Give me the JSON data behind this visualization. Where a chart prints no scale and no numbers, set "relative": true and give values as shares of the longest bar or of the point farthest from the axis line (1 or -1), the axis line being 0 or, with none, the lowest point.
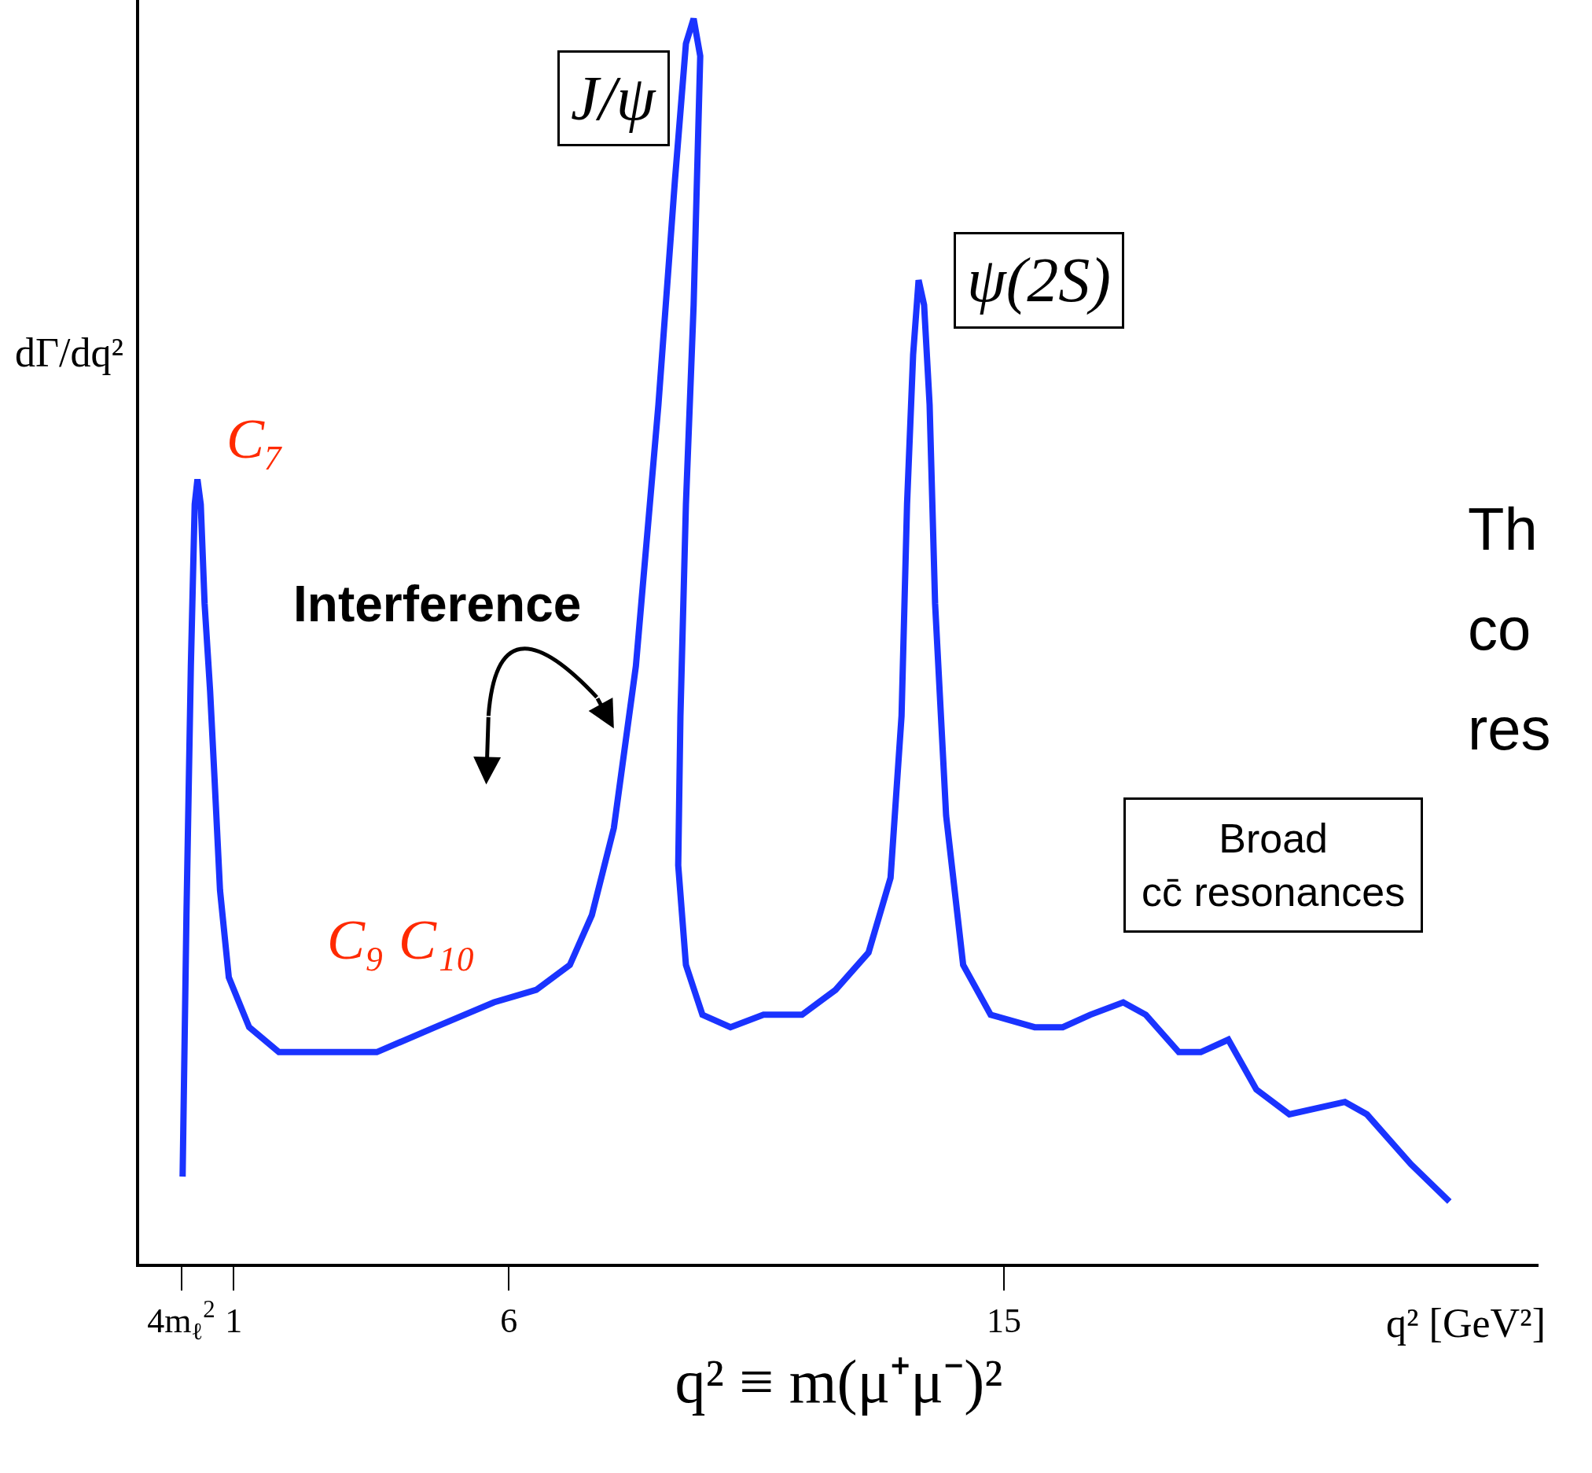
{
  "chart_data": {
    "type": "line",
    "relative": true,
    "xlabel": "q² ≡ m(μ⁺μ⁻)²",
    "ylabel": "dΓ/dq²",
    "xlim": [
      -0.72,
      24.72
    ],
    "xticks": [
      {
        "value": 0.045,
        "label": "4m$_{ℓ}$$^{2}$"
      },
      1,
      6,
      15
    ],
    "marker": "none",
    "line_style": "solid",
    "x": [
      0.07,
      0.14,
      0.22,
      0.29,
      0.34,
      0.4,
      0.47,
      0.57,
      0.65,
      0.75,
      0.91,
      1.28,
      1.82,
      2.53,
      3.6,
      4.66,
      5.73,
      6.5,
      7.11,
      7.51,
      7.91,
      8.31,
      8.72,
      9.02,
      9.22,
      9.36,
      9.48,
      9.36,
      9.22,
      9.12,
      9.08,
      9.22,
      9.52,
      10.03,
      10.63,
      11.33,
      11.94,
      12.54,
      12.94,
      13.14,
      13.24,
      13.35,
      13.45,
      13.55,
      13.65,
      13.75,
      13.95,
      14.26,
      14.76,
      15.56,
      16.07,
      16.57,
      17.17,
      17.58,
      18.18,
      18.58,
      19.08,
      19.59,
      20.19,
      21.2,
      21.6,
      22.4,
      23.1
    ],
    "series": [
      {
        "color": "#1a33ff",
        "values": [
          0.07,
          0.28,
          0.48,
          0.61,
          0.63,
          0.61,
          0.53,
          0.46,
          0.39,
          0.3,
          0.23,
          0.19,
          0.17,
          0.17,
          0.17,
          0.19,
          0.21,
          0.22,
          0.24,
          0.28,
          0.35,
          0.48,
          0.69,
          0.87,
          0.98,
          1.0,
          0.97,
          0.77,
          0.61,
          0.44,
          0.32,
          0.24,
          0.2,
          0.19,
          0.2,
          0.2,
          0.22,
          0.25,
          0.31,
          0.44,
          0.61,
          0.73,
          0.79,
          0.77,
          0.69,
          0.53,
          0.36,
          0.24,
          0.2,
          0.19,
          0.19,
          0.2,
          0.21,
          0.2,
          0.17,
          0.17,
          0.18,
          0.14,
          0.12,
          0.13,
          0.12,
          0.08,
          0.05
        ]
      }
    ],
    "annotations": [
      {
        "text": "J/ψ",
        "x": 9.36,
        "y": 1.0
      },
      {
        "text": "ψ(2S)",
        "x": 13.45,
        "y": 0.79
      },
      {
        "text": "C₇",
        "x": 0.34,
        "y": 0.63
      },
      "C₉ C₁₀",
      "Interference",
      "Broad cc̄ resonances",
      "q² [GeV²]",
      "Th",
      "co",
      "res"
    ]
  }
}
